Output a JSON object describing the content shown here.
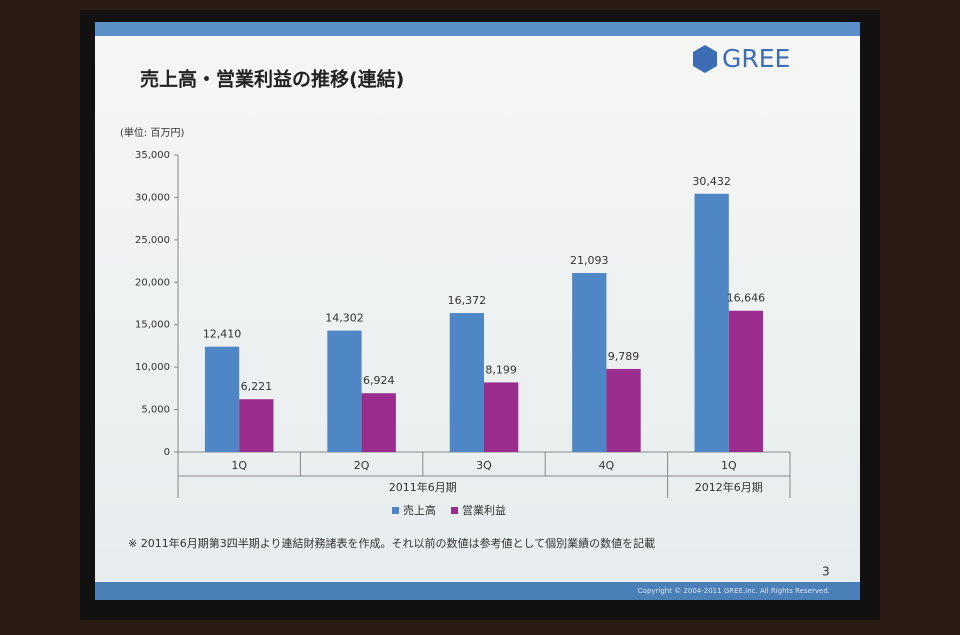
{
  "slide": {
    "title": "売上高・営業利益の推移(連結)",
    "logo": "GREE",
    "footnote": "※ 2011年6月期第3四半期より連結財務諸表を作成。それ以前の数値は参考値として個別業績の数値を記載",
    "page_number": "3",
    "copyright": "Copyright © 2004-2011 GREE,Inc. All Rights Reserved."
  },
  "chart_data": {
    "type": "bar",
    "y_axis_label": "(単位: 百万円)",
    "categories": [
      "1Q",
      "2Q",
      "3Q",
      "4Q",
      "1Q"
    ],
    "category_groups": [
      "2011年6月期",
      "2011年6月期",
      "2011年6月期",
      "2011年6月期",
      "2012年6月期"
    ],
    "series": [
      {
        "name": "売上高",
        "color": "#4f86c6",
        "values": [
          12410,
          14302,
          16372,
          21093,
          30432
        ],
        "value_labels": [
          "12,410",
          "14,302",
          "16,372",
          "21,093",
          "30,432"
        ]
      },
      {
        "name": "営業利益",
        "color": "#9b2d8f",
        "values": [
          6221,
          6924,
          8199,
          9789,
          16646
        ],
        "value_labels": [
          "6,221",
          "6,924",
          "8,199",
          "9,789",
          "16,646"
        ]
      }
    ],
    "ylim": [
      0,
      35000
    ],
    "yticks": [
      0,
      {
        "value": 5000,
        "label": "5,000"
      },
      {
        "value": 10000,
        "label": "10,000"
      },
      {
        "value": 15000,
        "label": "15,000"
      },
      {
        "value": 20000,
        "label": "20,000"
      },
      {
        "value": 25000,
        "label": "25,000"
      },
      {
        "value": 30000,
        "label": "30,000"
      },
      {
        "value": 35000,
        "label": "35,000"
      }
    ],
    "legend": "bottom"
  }
}
